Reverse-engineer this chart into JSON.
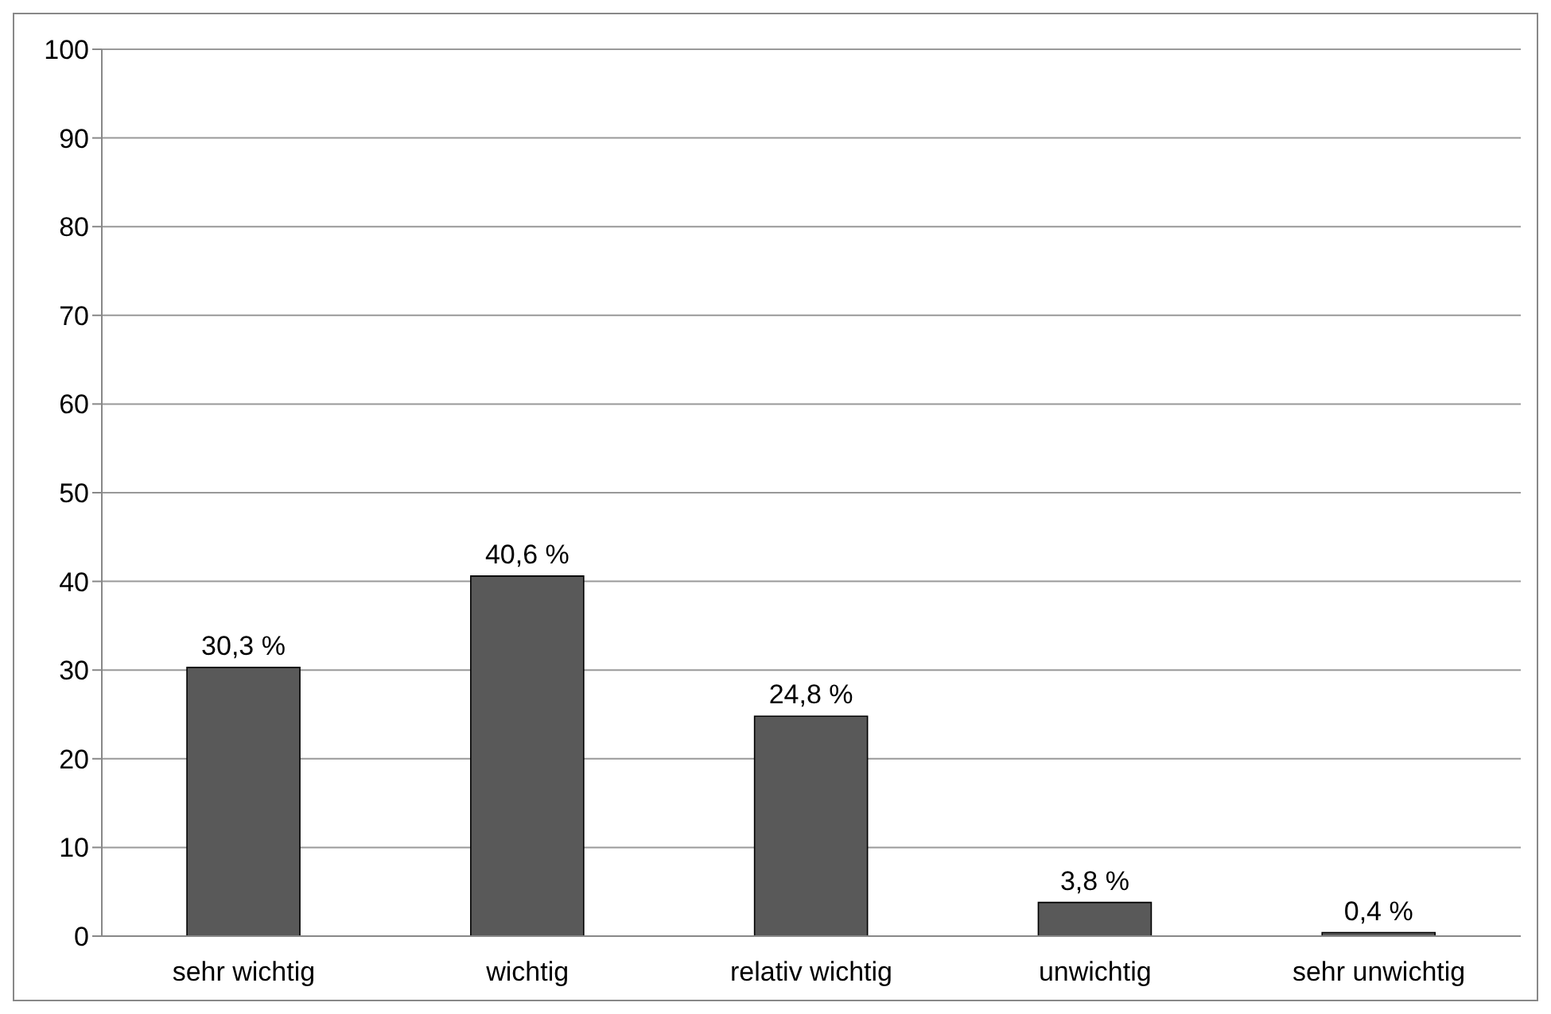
{
  "chart_data": {
    "type": "bar",
    "categories": [
      "sehr wichtig",
      "wichtig",
      "relativ wichtig",
      "unwichtig",
      "sehr unwichtig"
    ],
    "values": [
      30.3,
      40.6,
      24.8,
      3.8,
      0.4
    ],
    "value_labels": [
      "30,3 %",
      "40,6 %",
      "24,8 %",
      "3,8 %",
      "0,4 %"
    ],
    "color": "#595959",
    "ylim": [
      0,
      100
    ],
    "yticks": [
      0,
      10,
      20,
      30,
      40,
      50,
      60,
      70,
      80,
      90,
      100
    ],
    "grid": "y",
    "legend": false
  }
}
